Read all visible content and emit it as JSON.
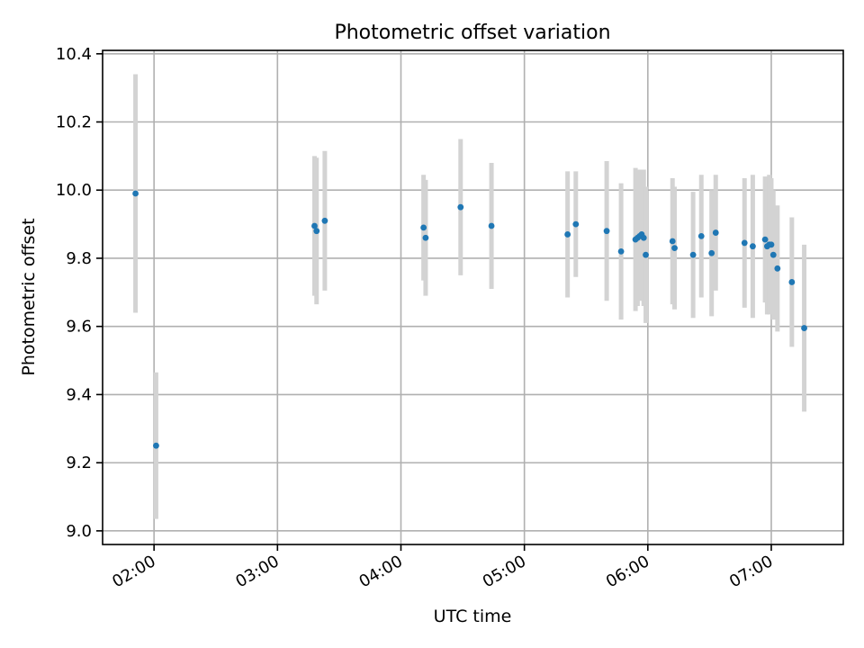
{
  "chart_data": {
    "type": "scatter",
    "title": "Photometric offset variation",
    "xlabel": "UTC time",
    "ylabel": "Photometric offset",
    "x_type": "time",
    "xlim": [
      "01:35",
      "07:35"
    ],
    "ylim": [
      8.96,
      10.41
    ],
    "x_ticks": [
      "02:00",
      "03:00",
      "04:00",
      "05:00",
      "06:00",
      "07:00"
    ],
    "y_ticks": [
      9.0,
      9.2,
      9.4,
      9.6,
      9.8,
      10.0,
      10.2,
      10.4
    ],
    "y_tick_labels": [
      "9.0",
      "9.2",
      "9.4",
      "9.6",
      "9.8",
      "10.0",
      "10.2",
      "10.4"
    ],
    "grid": true,
    "colors": {
      "point": "#1f77b4",
      "errorbar": "#d3d3d3",
      "grid": "#b0b0b0"
    },
    "points": [
      {
        "x": "01:51",
        "y": 9.99,
        "yerr": 0.35
      },
      {
        "x": "02:01",
        "y": 9.25,
        "yerr": 0.215
      },
      {
        "x": "03:18",
        "y": 9.895,
        "yerr": 0.205
      },
      {
        "x": "03:19",
        "y": 9.88,
        "yerr": 0.215
      },
      {
        "x": "03:23",
        "y": 9.91,
        "yerr": 0.205
      },
      {
        "x": "04:11",
        "y": 9.89,
        "yerr": 0.155
      },
      {
        "x": "04:12",
        "y": 9.86,
        "yerr": 0.17
      },
      {
        "x": "04:29",
        "y": 9.95,
        "yerr": 0.2
      },
      {
        "x": "04:44",
        "y": 9.895,
        "yerr": 0.185
      },
      {
        "x": "05:21",
        "y": 9.87,
        "yerr": 0.185
      },
      {
        "x": "05:25",
        "y": 9.9,
        "yerr": 0.155
      },
      {
        "x": "05:40",
        "y": 9.88,
        "yerr": 0.205
      },
      {
        "x": "05:47",
        "y": 9.82,
        "yerr": 0.2
      },
      {
        "x": "05:54",
        "y": 9.855,
        "yerr": 0.21
      },
      {
        "x": "05:55",
        "y": 9.86,
        "yerr": 0.2
      },
      {
        "x": "05:56",
        "y": 9.865,
        "yerr": 0.19
      },
      {
        "x": "05:57",
        "y": 9.87,
        "yerr": 0.19
      },
      {
        "x": "05:58",
        "y": 9.86,
        "yerr": 0.2
      },
      {
        "x": "05:59",
        "y": 9.81,
        "yerr": 0.2
      },
      {
        "x": "06:12",
        "y": 9.85,
        "yerr": 0.185
      },
      {
        "x": "06:13",
        "y": 9.83,
        "yerr": 0.18
      },
      {
        "x": "06:22",
        "y": 9.81,
        "yerr": 0.185
      },
      {
        "x": "06:26",
        "y": 9.865,
        "yerr": 0.18
      },
      {
        "x": "06:31",
        "y": 9.815,
        "yerr": 0.185
      },
      {
        "x": "06:33",
        "y": 9.875,
        "yerr": 0.17
      },
      {
        "x": "06:47",
        "y": 9.845,
        "yerr": 0.19
      },
      {
        "x": "06:51",
        "y": 9.835,
        "yerr": 0.21
      },
      {
        "x": "06:57",
        "y": 9.855,
        "yerr": 0.185
      },
      {
        "x": "06:58",
        "y": 9.835,
        "yerr": 0.2
      },
      {
        "x": "06:59",
        "y": 9.84,
        "yerr": 0.205
      },
      {
        "x": "07:00",
        "y": 9.84,
        "yerr": 0.195
      },
      {
        "x": "07:01",
        "y": 9.81,
        "yerr": 0.19
      },
      {
        "x": "07:03",
        "y": 9.77,
        "yerr": 0.185
      },
      {
        "x": "07:10",
        "y": 9.73,
        "yerr": 0.19
      },
      {
        "x": "07:16",
        "y": 9.595,
        "yerr": 0.245
      }
    ]
  }
}
